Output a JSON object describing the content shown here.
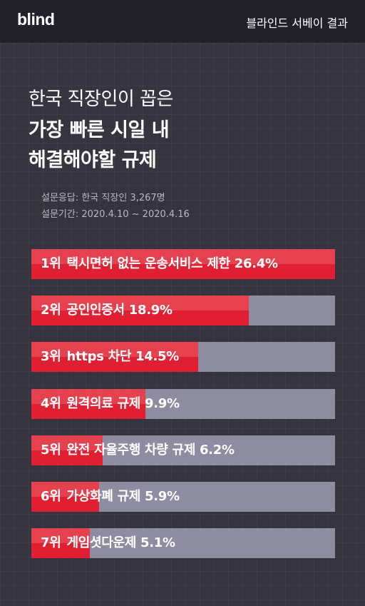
{
  "header": {
    "logo": "blind",
    "right_text": "블라인드 서베이 결과"
  },
  "title": {
    "line1": "한국 직장인이 꼽은",
    "line2": "가장 빠른 시일 내",
    "line3": "해결해야할 규제"
  },
  "meta": {
    "line1": "설문응답: 한국 직장인 3,267명",
    "line2": "설문기간: 2020.4.10 ~ 2020.4.16"
  },
  "chart_data": {
    "type": "bar",
    "orientation": "horizontal",
    "unit": "%",
    "xlim": [
      0,
      26.4
    ],
    "colors": {
      "fill": "#e01f32",
      "track": "#8e8ca0"
    },
    "categories": [
      {
        "rank": "1위",
        "name": "택시면허 없는 운송서비스 제한",
        "value": 26.4,
        "value_label": "26.4%"
      },
      {
        "rank": "2위",
        "name": "공인인증서",
        "value": 18.9,
        "value_label": "18.9%"
      },
      {
        "rank": "3위",
        "name": "https 차단",
        "value": 14.5,
        "value_label": "14.5%"
      },
      {
        "rank": "4위",
        "name": "원격의료 규제",
        "value": 9.9,
        "value_label": "9.9%"
      },
      {
        "rank": "5위",
        "name": "완전 자율주행 차량 규제",
        "value": 6.2,
        "value_label": "6.2%"
      },
      {
        "rank": "6위",
        "name": "가상화폐 규제",
        "value": 5.9,
        "value_label": "5.9%"
      },
      {
        "rank": "7위",
        "name": "게임셧다운제",
        "value": 5.1,
        "value_label": "5.1%"
      }
    ]
  }
}
